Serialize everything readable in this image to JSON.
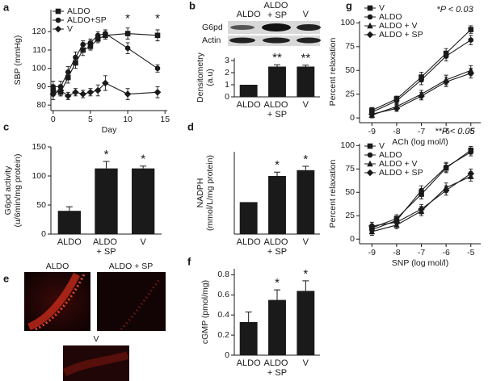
{
  "chart_data": [
    {
      "type": "line",
      "label": "a",
      "ylabel": [
        "SBP (mmHg)"
      ],
      "xlabel": "Day",
      "x": [
        0,
        1,
        2,
        3,
        4,
        5,
        6,
        7,
        10,
        14
      ],
      "xlim": [
        -0.3,
        15.3
      ],
      "xticks": [
        0,
        5,
        10,
        15
      ],
      "ylim": [
        77,
        132
      ],
      "yticks": [
        80,
        90,
        100,
        110,
        120
      ],
      "series": [
        {
          "name": "ALDO",
          "color": "#1a1a1a",
          "marker": "square",
          "values": [
            88,
            87,
            95,
            103,
            110,
            112,
            116,
            118,
            119,
            118
          ],
          "errors": [
            3,
            2,
            3,
            3,
            3,
            2,
            2,
            2,
            3,
            3
          ]
        },
        {
          "name": "ALDO+SP",
          "color": "#1a1a1a",
          "marker": "circle",
          "values": [
            90,
            90,
            98,
            106,
            113,
            114,
            118,
            119,
            111,
            100
          ],
          "errors": [
            3,
            3,
            3,
            3,
            2,
            2,
            2,
            2,
            3,
            2
          ]
        },
        {
          "name": "V",
          "color": "#1a1a1a",
          "marker": "diamond",
          "values": [
            86,
            88,
            85,
            87,
            86,
            87,
            88,
            92,
            86,
            87
          ],
          "errors": [
            3,
            3,
            2,
            2,
            2,
            2,
            3,
            4,
            3,
            3
          ]
        }
      ],
      "annotations": [
        {
          "text": "*",
          "x": 10,
          "y": 127
        },
        {
          "text": "*",
          "x": 14,
          "y": 127
        }
      ]
    },
    {
      "type": "bar",
      "label": "b",
      "ylabel": [
        "Densitometry",
        "(a.u)"
      ],
      "categories": [
        "ALDO",
        "ALDO + SP",
        "V"
      ],
      "values": [
        1,
        2.5,
        2.5
      ],
      "errors": [
        null,
        0.15,
        0.12
      ],
      "color": "#1a1a1a",
      "ylim": [
        0,
        3.2
      ],
      "yticks": [
        0,
        1,
        2,
        3
      ],
      "annotations": [
        {
          "text": "**",
          "category": "ALDO + SP"
        },
        {
          "text": "**",
          "category": "V"
        }
      ],
      "blot_rows": [
        "G6pd",
        "Actin"
      ],
      "blot_columns": [
        "ALDO",
        "ALDO + SP",
        "V"
      ]
    },
    {
      "type": "bar",
      "label": "c",
      "ylabel": [
        "G6pd activity",
        "(u/6min/mg protein)"
      ],
      "categories": [
        "ALDO",
        "ALDO + SP",
        "V"
      ],
      "values": [
        40,
        113,
        113
      ],
      "errors": [
        7,
        12,
        4
      ],
      "color": "#1a1a1a",
      "ylim": [
        0,
        150
      ],
      "yticks": [
        0,
        50,
        100,
        150
      ],
      "annotations": [
        {
          "text": "*",
          "category": "ALDO + SP"
        },
        {
          "text": "*",
          "category": "V"
        }
      ]
    },
    {
      "type": "bar",
      "label": "d",
      "ylabel": [
        "NADPH",
        "(mmol/L/mg protein)"
      ],
      "categories": [
        "ALDO",
        "ALDO + SP",
        "V"
      ],
      "values": [
        0.33,
        0.6,
        0.66
      ],
      "errors": [
        null,
        0.04,
        0.04
      ],
      "color": "#1a1a1a",
      "ylim": [
        0,
        0.85
      ],
      "annotations": [
        {
          "text": "*",
          "category": "ALDO + SP"
        },
        {
          "text": "*",
          "category": "V"
        }
      ]
    },
    {
      "type": "bar",
      "label": "f",
      "ylabel": [
        "cGMP (pmol/mg)"
      ],
      "categories": [
        "ALDO",
        "ALDO + SP",
        "V"
      ],
      "values": [
        0.33,
        0.55,
        0.64
      ],
      "errors": [
        0.1,
        0.1,
        0.1
      ],
      "color": "#1a1a1a",
      "ylim": [
        0,
        0.86
      ],
      "yticks": [
        0,
        0.2,
        0.4,
        0.6,
        0.8
      ],
      "annotations": [
        {
          "text": "*",
          "category": "ALDO + SP"
        },
        {
          "text": "*",
          "category": "V"
        }
      ]
    },
    {
      "type": "line",
      "label": "g",
      "ylabel": [
        "Percent relaxation"
      ],
      "xlabel": "ACh (log mol/l)",
      "note": "*P < 0.03",
      "x": [
        -9,
        -8,
        -7,
        -6,
        -5
      ],
      "xlim": [
        -9.5,
        -4.6
      ],
      "xticks": [
        -9,
        -8,
        -7,
        -6,
        -5
      ],
      "ylim": [
        -5,
        102
      ],
      "yticks": [
        0,
        25,
        50,
        75,
        100
      ],
      "series": [
        {
          "name": "V",
          "color": "#1a1a1a",
          "marker": "square",
          "values": [
            8,
            20,
            43,
            68,
            93
          ],
          "errors": [
            3,
            3,
            5,
            5,
            4
          ]
        },
        {
          "name": "ALDO",
          "color": "#1a1a1a",
          "marker": "circle",
          "values": [
            6,
            18,
            40,
            65,
            82
          ],
          "errors": [
            3,
            4,
            5,
            5,
            5
          ]
        },
        {
          "name": "ALDO + V",
          "color": "#1a1a1a",
          "marker": "triangle",
          "values": [
            3,
            12,
            25,
            40,
            50
          ],
          "errors": [
            3,
            3,
            4,
            5,
            5
          ]
        },
        {
          "name": "ALDO + SP",
          "color": "#1a1a1a",
          "marker": "diamond",
          "values": [
            4,
            10,
            23,
            38,
            47
          ],
          "errors": [
            3,
            3,
            4,
            5,
            5
          ]
        }
      ]
    },
    {
      "type": "line",
      "ylabel": [
        "Percent relaxation"
      ],
      "xlabel": "SNP (log mol/l)",
      "note": "**P < 0.05",
      "x": [
        -9,
        -8,
        -7,
        -6,
        -5
      ],
      "xlim": [
        -9.5,
        -4.6
      ],
      "xticks": [
        -9,
        -8,
        -7,
        -6,
        -5
      ],
      "ylim": [
        -5,
        102
      ],
      "yticks": [
        0,
        25,
        50,
        75,
        100
      ],
      "series": [
        {
          "name": "V",
          "color": "#1a1a1a",
          "marker": "square",
          "values": [
            12,
            22,
            48,
            76,
            95
          ],
          "errors": [
            4,
            4,
            5,
            5,
            4
          ]
        },
        {
          "name": "ALDO",
          "color": "#1a1a1a",
          "marker": "circle",
          "values": [
            10,
            20,
            52,
            77,
            93
          ],
          "errors": [
            4,
            4,
            5,
            5,
            4
          ]
        },
        {
          "name": "ALDO + V",
          "color": "#1a1a1a",
          "marker": "triangle",
          "values": [
            8,
            15,
            30,
            55,
            67
          ],
          "errors": [
            4,
            4,
            5,
            5,
            5
          ]
        },
        {
          "name": "ALDO + SP",
          "color": "#1a1a1a",
          "marker": "diamond",
          "values": [
            14,
            18,
            32,
            52,
            70
          ],
          "errors": [
            4,
            4,
            5,
            5,
            5
          ]
        }
      ]
    }
  ],
  "micrographs": {
    "label": "e",
    "titles": [
      "ALDO",
      "ALDO + SP",
      "V"
    ]
  }
}
